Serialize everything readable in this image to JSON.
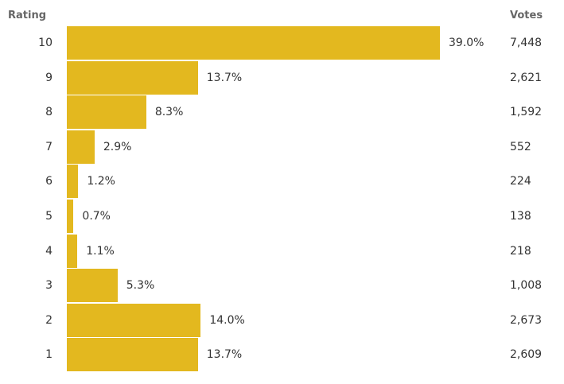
{
  "headers": {
    "rating": "Rating",
    "votes": "Votes"
  },
  "colors": {
    "bar": "#e3b81f",
    "text": "#333333",
    "header": "#666666"
  },
  "chart_data": {
    "type": "bar",
    "orientation": "horizontal",
    "xlabel": "",
    "ylabel": "Rating",
    "categories": [
      "10",
      "9",
      "8",
      "7",
      "6",
      "5",
      "4",
      "3",
      "2",
      "1"
    ],
    "series": [
      {
        "values": [
          39.0,
          13.7,
          8.3,
          2.9,
          1.2,
          0.7,
          1.1,
          5.3,
          14.0,
          13.7
        ]
      }
    ],
    "value_labels": [
      "39.0%",
      "13.7%",
      "8.3%",
      "2.9%",
      "1.2%",
      "0.7%",
      "1.1%",
      "5.3%",
      "14.0%",
      "13.7%"
    ],
    "votes": [
      "7,448",
      "2,621",
      "1,592",
      "552",
      "224",
      "138",
      "218",
      "1,008",
      "2,673",
      "2,609"
    ],
    "xlim": [
      0,
      39.0
    ],
    "grid": false,
    "legend": "none"
  }
}
